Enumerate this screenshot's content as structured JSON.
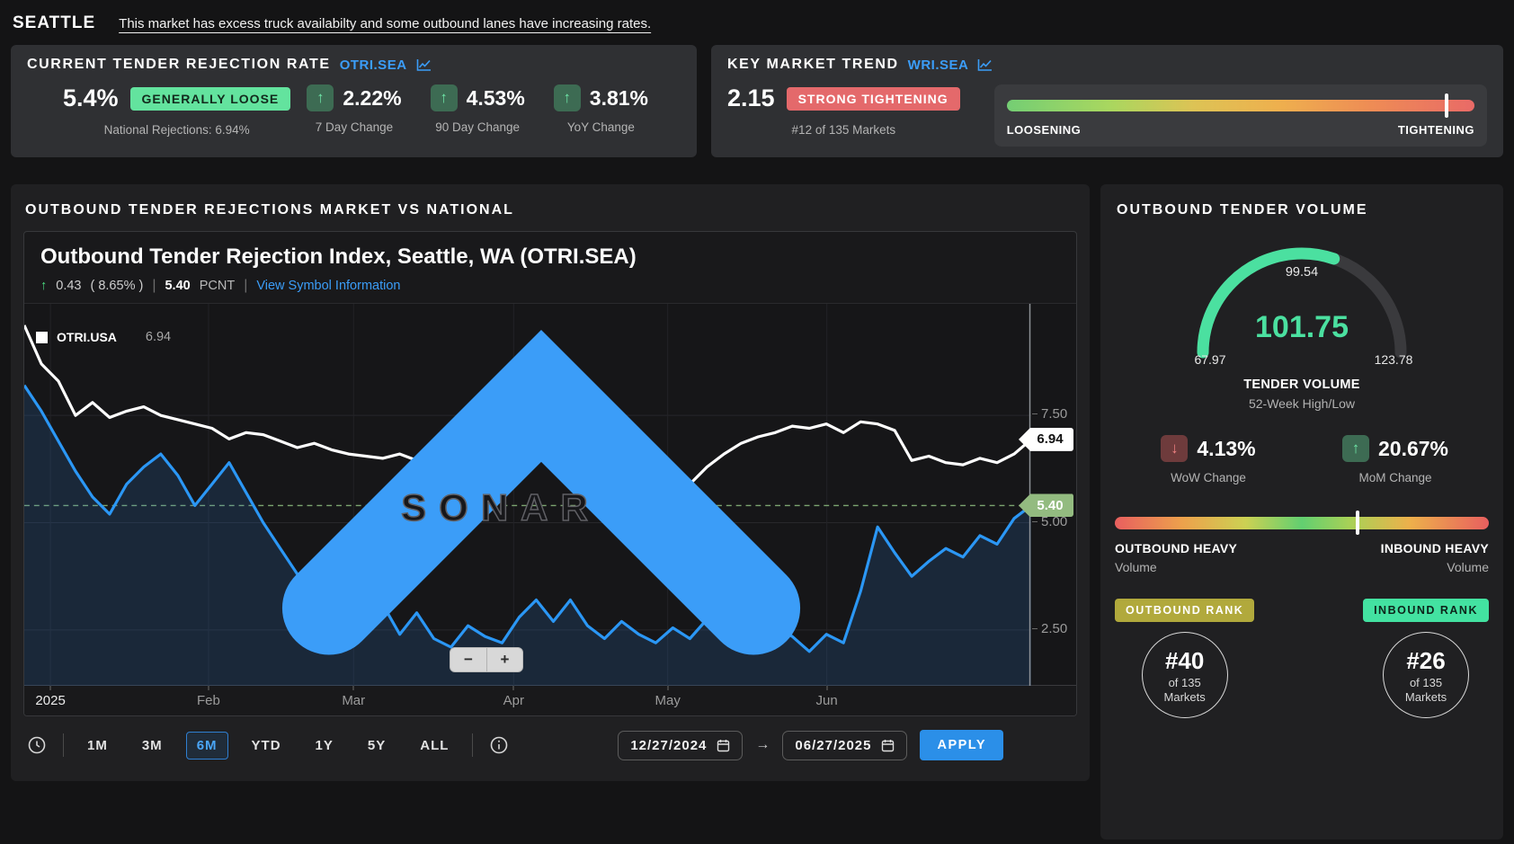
{
  "colors": {
    "accent_blue": "#2b8fe8",
    "link_blue": "#3b9df8",
    "positive_green": "#63e39e",
    "negative_red": "#e4696b",
    "gauge_green": "#4be0a0",
    "tag_sage": "#93bb80",
    "olive_badge": "#b1a93c",
    "mint_badge": "#43e2a1",
    "white_series": "#ffffff",
    "blue_series": "#2b97f5"
  },
  "header": {
    "market": "SEATTLE",
    "summary": "This market has excess truck availabilty and some outbound lanes have increasing rates."
  },
  "rejection_card": {
    "title": "CURRENT TENDER REJECTION RATE",
    "symbol": "OTRI.SEA",
    "value": "5.4%",
    "condition_badge": "GENERALLY LOOSE",
    "national": "National Rejections: 6.94%",
    "changes": [
      {
        "value": "2.22%",
        "label": "7 Day Change",
        "direction": "up",
        "arrow": "↑"
      },
      {
        "value": "4.53%",
        "label": "90 Day Change",
        "direction": "up",
        "arrow": "↑"
      },
      {
        "value": "3.81%",
        "label": "YoY Change",
        "direction": "up",
        "arrow": "↑"
      }
    ]
  },
  "trend_card": {
    "title": "KEY MARKET TREND",
    "symbol": "WRI.SEA",
    "value": "2.15",
    "badge": "STRONG TIGHTENING",
    "rank": "#12 of 135 Markets",
    "scale_left": "LOOSENING",
    "scale_right": "TIGHTENING",
    "marker_pct": 94
  },
  "rejections_section": {
    "heading": "OUTBOUND TENDER REJECTIONS MARKET VS NATIONAL",
    "chart_title": "Outbound Tender Rejection Index, Seattle, WA (OTRI.SEA)",
    "arrow": "↑",
    "change_abs": "0.43",
    "change_pct": "( 8.65% )",
    "sep": "|",
    "last_value": "5.40",
    "unit": "PCNT",
    "link": "View Symbol Information",
    "legend": {
      "symbol": "OTRI.USA",
      "value": "6.94"
    },
    "watermark": "SONAR",
    "zoom_out": "−",
    "zoom_in": "+"
  },
  "chart_data": {
    "type": "line",
    "title": "Outbound Tender Rejection Index, Seattle, WA (OTRI.SEA)",
    "ylabel": "PCNT",
    "ylim": [
      1.2,
      10.1
    ],
    "grid": true,
    "legend_position": "top-left",
    "yticks": [
      {
        "label": "7.50",
        "value": 7.5
      },
      {
        "label": "5.00",
        "value": 5.0
      },
      {
        "label": "2.50",
        "value": 2.5
      }
    ],
    "xticks": [
      {
        "label": "2025",
        "pos": 2.6,
        "year": true
      },
      {
        "label": "Feb",
        "pos": 18.3
      },
      {
        "label": "Mar",
        "pos": 32.7
      },
      {
        "label": "Apr",
        "pos": 48.6
      },
      {
        "label": "May",
        "pos": 63.9
      },
      {
        "label": "Jun",
        "pos": 79.7
      }
    ],
    "tags": [
      {
        "label": "6.94",
        "value": 6.94,
        "style": "tag-white"
      },
      {
        "label": "5.40",
        "value": 5.4,
        "style": "tag-green"
      }
    ],
    "dashed_at": 5.4,
    "x_range": [
      "12/27/2024",
      "06/27/2025"
    ],
    "series": [
      {
        "name": "OTRI.USA",
        "color": "#ffffff",
        "last": 6.94,
        "values": [
          9.6,
          8.7,
          8.3,
          7.5,
          7.8,
          7.45,
          7.6,
          7.7,
          7.5,
          7.4,
          7.3,
          7.2,
          6.95,
          7.1,
          7.05,
          6.9,
          6.75,
          6.85,
          6.7,
          6.6,
          6.55,
          6.5,
          6.6,
          6.45,
          6.55,
          6.8,
          7.3,
          7.5,
          7.45,
          6.9,
          6.6,
          6.7,
          6.55,
          6.65,
          5.95,
          6.3,
          6.45,
          6.35,
          6.3,
          5.9,
          6.3,
          6.6,
          6.85,
          7.0,
          7.1,
          7.25,
          7.2,
          7.3,
          7.1,
          7.35,
          7.3,
          7.15,
          6.45,
          6.55,
          6.4,
          6.35,
          6.5,
          6.4,
          6.6,
          6.94
        ]
      },
      {
        "name": "OTRI.SEA",
        "color": "#2b97f5",
        "fill": "rgba(43,120,210,0.18)",
        "last": 5.4,
        "values": [
          8.2,
          7.6,
          6.9,
          6.2,
          5.6,
          5.2,
          5.9,
          6.3,
          6.6,
          6.1,
          5.4,
          5.9,
          6.4,
          5.7,
          5.0,
          4.4,
          3.8,
          2.17,
          3.3,
          2.6,
          4.15,
          3.1,
          2.4,
          2.9,
          2.3,
          2.1,
          2.6,
          2.35,
          2.2,
          2.8,
          3.2,
          2.7,
          3.2,
          2.6,
          2.3,
          2.7,
          2.4,
          2.2,
          2.55,
          2.3,
          2.75,
          2.5,
          2.85,
          2.45,
          2.6,
          2.35,
          2.0,
          2.4,
          2.2,
          3.4,
          4.9,
          4.3,
          3.75,
          4.1,
          4.4,
          4.2,
          4.7,
          4.5,
          5.1,
          5.4
        ]
      }
    ]
  },
  "toolbar": {
    "ranges": [
      "1M",
      "3M",
      "6M",
      "YTD",
      "1Y",
      "5Y",
      "ALL"
    ],
    "selected": "6M",
    "date_from": "12/27/2024",
    "date_to": "06/27/2025",
    "arrow": "→",
    "apply": "APPLY"
  },
  "volume_panel": {
    "heading": "OUTBOUND TENDER VOLUME",
    "gauge": {
      "value": "101.75",
      "marker": "99.54",
      "low": "67.97",
      "high": "123.78",
      "caption": "TENDER VOLUME",
      "subcaption": "52-Week High/Low",
      "pct": 60.5
    },
    "changes": [
      {
        "value": "4.13%",
        "label": "WoW Change",
        "direction": "down",
        "arrow": "↓"
      },
      {
        "value": "20.67%",
        "label": "MoM Change",
        "direction": "up",
        "arrow": "↑"
      }
    ],
    "balance": {
      "left_title": "OUTBOUND HEAVY",
      "left_sub": "Volume",
      "right_title": "INBOUND HEAVY",
      "right_sub": "Volume",
      "marker_pct": 65
    },
    "outbound_rank": {
      "badge": "OUTBOUND RANK",
      "rank": "#40",
      "of": "of 135",
      "markets": "Markets"
    },
    "inbound_rank": {
      "badge": "INBOUND RANK",
      "rank": "#26",
      "of": "of 135",
      "markets": "Markets"
    }
  }
}
